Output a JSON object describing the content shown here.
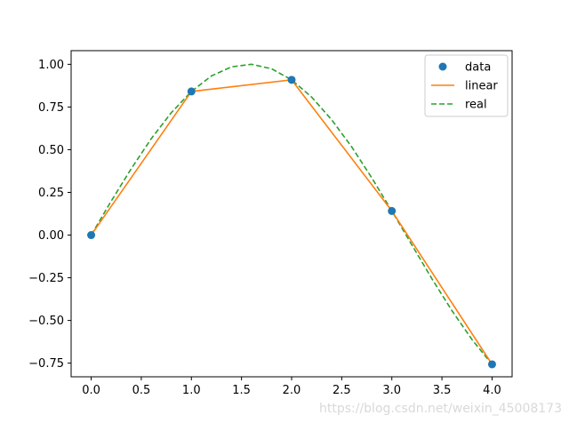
{
  "chart_data": {
    "type": "line",
    "title": "",
    "xlabel": "",
    "ylabel": "",
    "xlim": [
      -0.2,
      4.2
    ],
    "ylim": [
      -0.83,
      1.08
    ],
    "xticks": [
      0.0,
      0.5,
      1.0,
      1.5,
      2.0,
      2.5,
      3.0,
      3.5,
      4.0
    ],
    "xtick_labels": [
      "0.0",
      "0.5",
      "1.0",
      "1.5",
      "2.0",
      "2.5",
      "3.0",
      "3.5",
      "4.0"
    ],
    "yticks": [
      -0.75,
      -0.5,
      -0.25,
      0.0,
      0.25,
      0.5,
      0.75,
      1.0
    ],
    "ytick_labels": [
      "−0.75",
      "−0.50",
      "−0.25",
      "0.00",
      "0.25",
      "0.50",
      "0.75",
      "1.00"
    ],
    "grid": false,
    "legend_position": "top-right",
    "series": [
      {
        "name": "data",
        "style": "markers",
        "color": "#1f77b4",
        "x": [
          0,
          1,
          2,
          3,
          4
        ],
        "y": [
          0.0,
          0.841,
          0.909,
          0.141,
          -0.757
        ]
      },
      {
        "name": "linear",
        "style": "solid",
        "color": "#ff7f0e",
        "x": [
          0,
          1,
          2,
          3,
          4
        ],
        "y": [
          0.0,
          0.841,
          0.909,
          0.141,
          -0.757
        ]
      },
      {
        "name": "real",
        "style": "dashed",
        "color": "#2ca02c",
        "x": [
          0.0,
          0.2,
          0.4,
          0.6,
          0.8,
          1.0,
          1.2,
          1.4,
          1.6,
          1.8,
          2.0,
          2.2,
          2.4,
          2.6,
          2.8,
          3.0,
          3.2,
          3.4,
          3.6,
          3.8,
          4.0
        ],
        "y": [
          0.0,
          0.199,
          0.389,
          0.565,
          0.717,
          0.841,
          0.932,
          0.985,
          1.0,
          0.974,
          0.909,
          0.808,
          0.675,
          0.516,
          0.335,
          0.141,
          -0.058,
          -0.256,
          -0.443,
          -0.612,
          -0.757
        ]
      }
    ]
  },
  "watermark": "https://blog.csdn.net/weixin_45008173"
}
